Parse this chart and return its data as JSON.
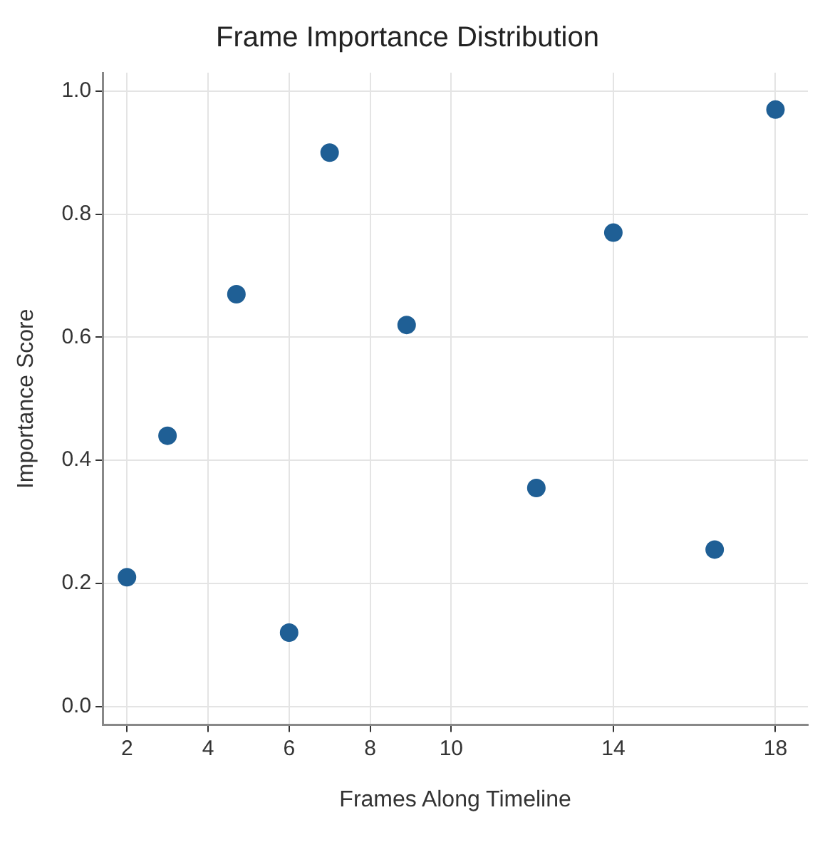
{
  "chart_data": {
    "type": "scatter",
    "title": "Frame Importance Distribution",
    "xlabel": "Frames Along Timeline",
    "ylabel": "Importance Score",
    "x": [
      2,
      3,
      4.7,
      6,
      7,
      8.9,
      12.1,
      14,
      16.5,
      18
    ],
    "values": [
      0.21,
      0.44,
      0.67,
      0.12,
      0.9,
      0.62,
      0.355,
      0.77,
      0.255,
      0.97
    ],
    "color": "#1f5f95",
    "marker": "circle",
    "grid": true,
    "xlim": [
      1.4,
      18.8
    ],
    "xticks": [
      2,
      4,
      6,
      8,
      10,
      14,
      18
    ],
    "ylim": [
      -0.03,
      1.03
    ],
    "yticks": [
      {
        "value": 0,
        "label": "0.0"
      },
      {
        "value": 0.2,
        "label": "0.2"
      },
      {
        "value": 0.4,
        "label": "0.4"
      },
      {
        "value": 0.6,
        "label": "0.6"
      },
      {
        "value": 0.8,
        "label": "0.8"
      },
      {
        "value": 1,
        "label": "1.0"
      }
    ]
  }
}
